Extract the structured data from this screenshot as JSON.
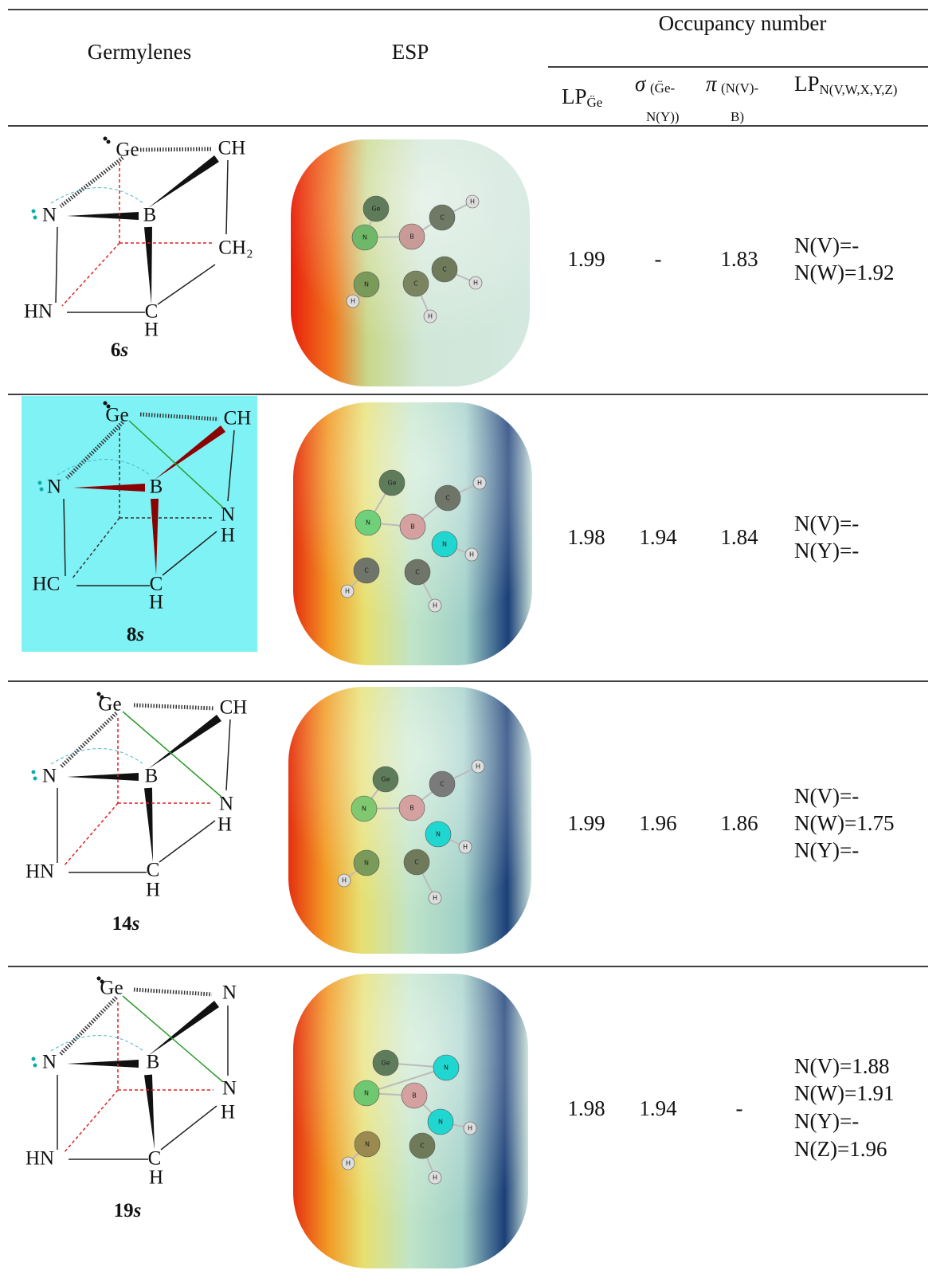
{
  "header": {
    "germylenes": "Germylenes",
    "esp": "ESP",
    "occupancy": "Occupancy number",
    "lp_ge": {
      "main": "LP",
      "sub": "G̈e"
    },
    "sigma": {
      "main": "σ",
      "sub": [
        "(G̈e-",
        "N(Y))"
      ]
    },
    "pi": {
      "main": "π",
      "sub": [
        "(N(V)-",
        "B)"
      ]
    },
    "lp_n": {
      "main": "LP",
      "sub": "N(V,W,X,Y,Z)"
    }
  },
  "rows": [
    {
      "compound": "6",
      "state": "s",
      "diagram_atoms": [
        "Ge",
        "CH",
        "N",
        "B",
        "CH₂",
        "HN",
        "C",
        "H"
      ],
      "esp_atoms": [
        "Ge",
        "N",
        "B",
        "C",
        "H",
        "C",
        "H",
        "N",
        "H",
        "C",
        "H"
      ],
      "lp_ge": "1.99",
      "sigma": "-",
      "pi": "1.83",
      "lp_n": [
        "N(V)=-",
        "N(W)=1.92"
      ]
    },
    {
      "compound": "8",
      "state": "s",
      "diagram_atoms": [
        "Ge",
        "CH",
        "N",
        "B",
        "N",
        "H",
        "HC",
        "C",
        "H"
      ],
      "esp_atoms": [
        "Ge",
        "N",
        "B",
        "C",
        "H",
        "N",
        "H",
        "C",
        "H",
        "C",
        "H"
      ],
      "lp_ge": "1.98",
      "sigma": "1.94",
      "pi": "1.84",
      "lp_n": [
        "N(V)=-",
        "N(Y)=-"
      ]
    },
    {
      "compound": "14",
      "state": "s",
      "diagram_atoms": [
        "Ge",
        "CH",
        "N",
        "B",
        "N",
        "H",
        "HN",
        "C",
        "H"
      ],
      "esp_atoms": [
        "Ge",
        "N",
        "B",
        "C",
        "H",
        "N",
        "H",
        "N",
        "H",
        "C",
        "H"
      ],
      "lp_ge": "1.99",
      "sigma": "1.96",
      "pi": "1.86",
      "lp_n": [
        "N(V)=-",
        "N(W)=1.75",
        "N(Y)=-"
      ]
    },
    {
      "compound": "19",
      "state": "s",
      "diagram_atoms": [
        "Ge",
        "N",
        "N",
        "B",
        "N",
        "H",
        "HN",
        "C",
        "H"
      ],
      "esp_atoms": [
        "Ge",
        "N",
        "N",
        "B",
        "N",
        "H",
        "N",
        "H",
        "C",
        "H"
      ],
      "lp_ge": "1.98",
      "sigma": "1.94",
      "pi": "-",
      "lp_n": [
        "N(V)=1.88",
        "N(W)=1.91",
        "N(Y)=-",
        "N(Z)=1.96"
      ]
    }
  ]
}
